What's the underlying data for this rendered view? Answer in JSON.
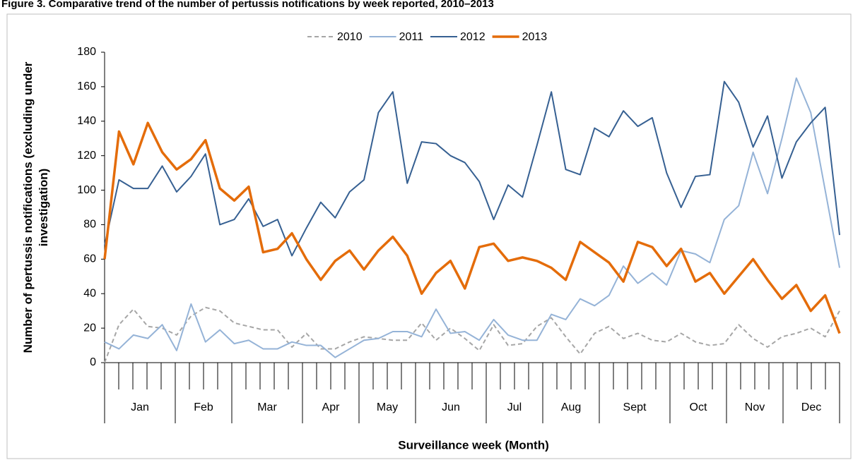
{
  "chart_data": {
    "type": "line",
    "title": "Figure 3. Comparative trend of the number of pertussis notifications by week reported, 2010–2013",
    "x_label": "Surveillance week (Month)",
    "y_label": "Number of pertussis notifications (excluding under investigation)",
    "categories": [
      null,
      null,
      null,
      null,
      null,
      null,
      null,
      null,
      null,
      null,
      null,
      null,
      null,
      null,
      null,
      null,
      null,
      null,
      null,
      null,
      null,
      null,
      null,
      null,
      null,
      null,
      null,
      null,
      null,
      null,
      null,
      null,
      null,
      null,
      null,
      null,
      null,
      null,
      null,
      null,
      null,
      null,
      null,
      null,
      null,
      null,
      null,
      null,
      null,
      null,
      null,
      null
    ],
    "x_groups": [
      {
        "label": "Jan",
        "weeks": 5
      },
      {
        "label": "Feb",
        "weeks": 4
      },
      {
        "label": "Mar",
        "weeks": 5
      },
      {
        "label": "Apr",
        "weeks": 4
      },
      {
        "label": "May",
        "weeks": 4
      },
      {
        "label": "Jun",
        "weeks": 5
      },
      {
        "label": "Jul",
        "weeks": 4
      },
      {
        "label": "Aug",
        "weeks": 4
      },
      {
        "label": "Sept",
        "weeks": 5
      },
      {
        "label": "Oct",
        "weeks": 4
      },
      {
        "label": "Nov",
        "weeks": 4
      },
      {
        "label": "Dec",
        "weeks": 4
      }
    ],
    "ylim": [
      0,
      180
    ],
    "yticks": [
      0,
      20,
      40,
      60,
      80,
      100,
      120,
      140,
      160,
      180
    ],
    "legend": "top",
    "series": [
      {
        "name": "2010",
        "color": "#a6a6a6",
        "style": "dashed",
        "width": 2,
        "values": [
          0,
          22,
          31,
          21,
          20,
          16,
          27,
          32,
          30,
          23,
          21,
          19,
          19,
          9,
          17,
          8,
          8,
          12,
          15,
          14,
          13,
          13,
          23,
          13,
          20,
          14,
          7,
          22,
          10,
          11,
          21,
          26,
          15,
          5,
          17,
          21,
          14,
          17,
          13,
          12,
          17,
          12,
          10,
          11,
          22,
          14,
          9,
          15,
          17,
          20,
          15,
          30
        ]
      },
      {
        "name": "2011",
        "color": "#95b3d7",
        "style": "solid",
        "width": 2,
        "values": [
          12,
          8,
          16,
          14,
          22,
          7,
          34,
          12,
          19,
          11,
          13,
          8,
          8,
          12,
          10,
          10,
          3,
          8,
          13,
          14,
          18,
          18,
          15,
          31,
          17,
          18,
          13,
          25,
          16,
          13,
          13,
          28,
          25,
          37,
          33,
          39,
          56,
          46,
          52,
          45,
          65,
          63,
          58,
          83,
          91,
          122,
          98,
          130,
          165,
          145,
          100,
          55
        ]
      },
      {
        "name": "2012",
        "color": "#366092",
        "style": "solid",
        "width": 2,
        "values": [
          68,
          106,
          101,
          101,
          114,
          99,
          108,
          121,
          80,
          83,
          95,
          79,
          83,
          62,
          78,
          93,
          84,
          99,
          106,
          145,
          157,
          104,
          128,
          127,
          120,
          116,
          105,
          83,
          103,
          96,
          126,
          157,
          112,
          109,
          136,
          131,
          146,
          137,
          142,
          110,
          90,
          108,
          109,
          163,
          151,
          125,
          143,
          107,
          128,
          139,
          148,
          74
        ]
      },
      {
        "name": "2013",
        "color": "#e46c0a",
        "style": "solid",
        "width": 3.5,
        "values": [
          60,
          134,
          115,
          139,
          122,
          112,
          118,
          129,
          101,
          94,
          102,
          64,
          66,
          75,
          60,
          48,
          59,
          65,
          54,
          65,
          73,
          62,
          40,
          52,
          59,
          43,
          67,
          69,
          59,
          61,
          59,
          55,
          48,
          70,
          64,
          58,
          47,
          70,
          67,
          56,
          66,
          47,
          52,
          40,
          50,
          60,
          48,
          37,
          45,
          30,
          39,
          17
        ]
      }
    ]
  }
}
